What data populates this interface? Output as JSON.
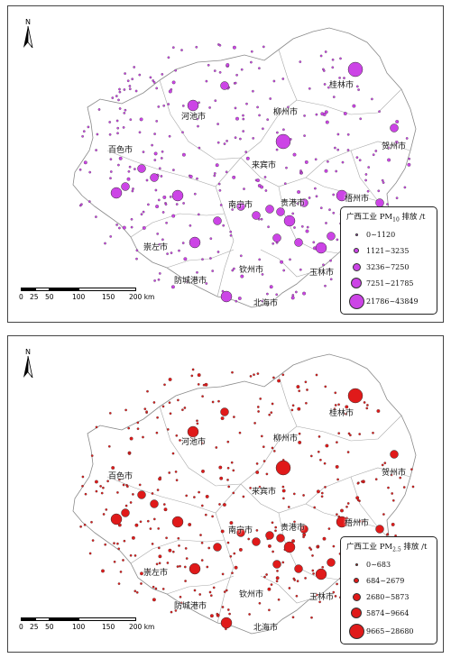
{
  "scale": {
    "labels": [
      "0",
      "25",
      "50",
      "100",
      "150",
      "200 km"
    ]
  },
  "north_label": "N",
  "panels": [
    {
      "legend_title_prefix": "广西工业 PM",
      "legend_title_sub": "10",
      "legend_title_suffix": " 排放 /t",
      "color": "#cc44e6",
      "classes": [
        "0~1120",
        "1121~3235",
        "3236~7250",
        "7251~21785",
        "21786~43849"
      ],
      "cities": [
        "河池市",
        "桂林市",
        "柳州市",
        "贺州市",
        "百色市",
        "来宾市",
        "南宁市",
        "贵港市",
        "梧州市",
        "崇左市",
        "钦州市",
        "玉林市",
        "防城港市",
        "北海市"
      ]
    },
    {
      "legend_title_prefix": "广西工业 PM",
      "legend_title_sub": "2.5",
      "legend_title_suffix": " 排放 /t",
      "color": "#e01a1a",
      "classes": [
        "0~683",
        "684~2679",
        "2680~5873",
        "5874~9664",
        "9665~28680"
      ],
      "cities": [
        "河池市",
        "桂林市",
        "柳州市",
        "贺州市",
        "百色市",
        "来宾市",
        "南宁市",
        "贵港市",
        "梧州市",
        "崇左市",
        "钦州市",
        "玉林市",
        "防城港市",
        "北海市"
      ]
    }
  ],
  "map_data": {
    "big_points": [
      [
        385,
        70,
        4
      ],
      [
        205,
        110,
        3
      ],
      [
        240,
        88,
        2
      ],
      [
        305,
        150,
        4
      ],
      [
        428,
        135,
        2
      ],
      [
        120,
        207,
        3
      ],
      [
        130,
        200,
        2
      ],
      [
        148,
        180,
        2
      ],
      [
        188,
        210,
        3
      ],
      [
        162,
        190,
        2
      ],
      [
        258,
        222,
        2
      ],
      [
        290,
        225,
        2
      ],
      [
        312,
        238,
        3
      ],
      [
        302,
        228,
        2
      ],
      [
        328,
        218,
        2
      ],
      [
        370,
        210,
        3
      ],
      [
        347,
        268,
        3
      ],
      [
        322,
        262,
        2
      ],
      [
        298,
        257,
        2
      ],
      [
        207,
        262,
        3
      ],
      [
        242,
        322,
        3
      ],
      [
        358,
        255,
        2
      ],
      [
        232,
        238,
        2
      ],
      [
        275,
        232,
        2
      ],
      [
        412,
        218,
        2
      ]
    ]
  }
}
